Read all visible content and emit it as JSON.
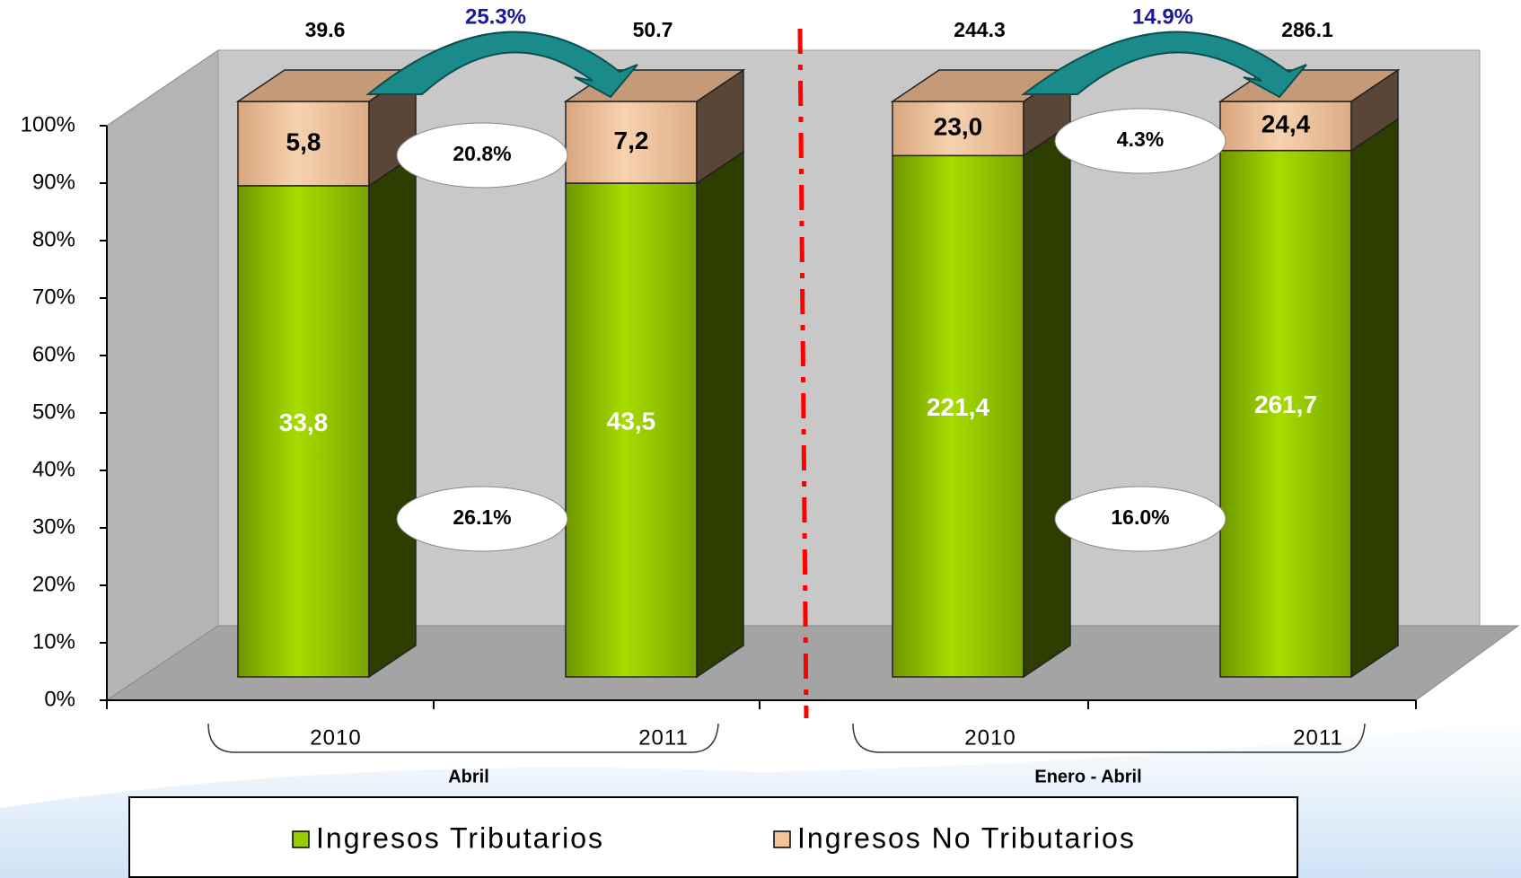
{
  "chart_data": {
    "type": "bar",
    "stacking": "percent",
    "categories": [
      "2010",
      "2011",
      "2010",
      "2011"
    ],
    "groups": [
      "Abril",
      "Enero - Abril"
    ],
    "series": [
      {
        "name": "Ingresos Tributarios",
        "color": "#99cc00",
        "values": [
          33.8,
          43.5,
          221.4,
          261.7
        ],
        "value_labels": [
          "33,8",
          "43,5",
          "221,4",
          "261,7"
        ]
      },
      {
        "name": "Ingresos No Tributarios",
        "color": "#f2c49b",
        "values": [
          5.8,
          7.2,
          23.0,
          24.4
        ],
        "value_labels": [
          "5,8",
          "7,2",
          "23,0",
          "24,4"
        ]
      }
    ],
    "totals": [
      39.6,
      50.7,
      244.3,
      286.1
    ],
    "annotations": [
      "25.3%",
      "14.9%",
      "20.8%",
      "4.3%",
      "26.1%",
      "16.0%"
    ],
    "ylim": [
      0,
      100
    ],
    "yticks": [
      {
        "value": 0,
        "label": "0%"
      },
      {
        "value": 10,
        "label": "10%"
      },
      {
        "value": 20,
        "label": "20%"
      },
      {
        "value": 30,
        "label": "30%"
      },
      {
        "value": 40,
        "label": "40%"
      },
      {
        "value": 50,
        "label": "50%"
      },
      {
        "value": 60,
        "label": "60%"
      },
      {
        "value": 70,
        "label": "70%"
      },
      {
        "value": 80,
        "label": "80%"
      },
      {
        "value": 90,
        "label": "90%"
      },
      {
        "value": 100,
        "label": "100%"
      }
    ],
    "legend": "bottom"
  }
}
